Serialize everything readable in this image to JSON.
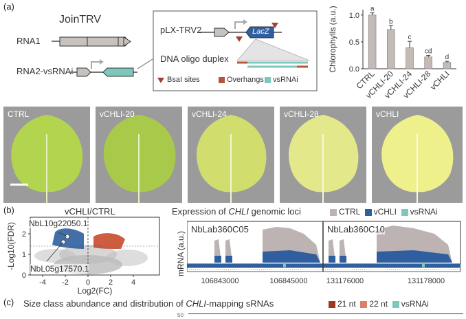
{
  "panel_a": {
    "label": "(a)",
    "join_title": "JoinTRV",
    "rna1": "RNA1",
    "rna2": "RNA2-vsRNAi",
    "vector": "pLX-TRV2",
    "lacz": "LacZ",
    "oligo": "DNA oligo duplex",
    "legend": [
      {
        "label": "BsaI sites",
        "color": "#a0403a"
      },
      {
        "label": "Overhangs",
        "color": "#b3563a"
      },
      {
        "label": "vsRNAi",
        "color": "#7ec8bb"
      }
    ],
    "leaf_labels": [
      "CTRL",
      "vCHLI-20",
      "vCHLI-24",
      "vCHLI-28",
      "vCHLI"
    ]
  },
  "panel_b": {
    "label": "(b)",
    "volcano_title": "vCHLI/CTRL",
    "gene1": "NbL10g22050.1",
    "gene2": "NbL05g17570.1",
    "volcano_ylabel": "-Log10(FDR)",
    "volcano_xlabel": "Log2(FC)",
    "volcano_xticks": [
      "-4",
      "-2",
      "0",
      "2",
      "4"
    ],
    "volcano_yticks": [
      "0",
      "1",
      "2"
    ],
    "expr_title_pre": "Expression of ",
    "expr_title_gene": "CHLI",
    "expr_title_post": " genomic loci",
    "expr_legend": [
      {
        "label": "CTRL",
        "color": "#bdb3b3"
      },
      {
        "label": "vCHLI",
        "color": "#2f5f9e"
      },
      {
        "label": "vsRNAi",
        "color": "#7ec8bb"
      }
    ],
    "locus1": "NbLab360C05",
    "locus2": "NbLab360C10",
    "mrna_label": "mRNA (a.u.)",
    "coords": [
      "106843000",
      "106845000",
      "131176000",
      "131178000"
    ]
  },
  "panel_c": {
    "label": "(c)",
    "title_pre": "Size class abundance and distribution of ",
    "title_gene": "CHLI",
    "title_post": "-mapping sRNAs",
    "legend": [
      {
        "label": "21 nt",
        "color": "#a3361f"
      },
      {
        "label": "22 nt",
        "color": "#d9826a"
      },
      {
        "label": "vsRNAi",
        "color": "#7ec8bb"
      }
    ],
    "partial_tick": "50"
  },
  "chart_data": {
    "type": "bar",
    "categories": [
      "CTRL",
      "vCHLI-20",
      "vCHLI-24",
      "vCHLI-28",
      "vCHLI"
    ],
    "values": [
      1.0,
      0.73,
      0.39,
      0.22,
      0.12
    ],
    "errors": [
      0.04,
      0.07,
      0.12,
      0.03,
      0.02
    ],
    "letters": [
      "a",
      "b",
      "c",
      "cd",
      "d"
    ],
    "ylabel": "Chlorophylls (a.u.)",
    "yticks": [
      "0.0",
      "0.5",
      "1.0"
    ],
    "ylim": [
      0,
      1.1
    ],
    "bar_color": "#c4bbb7"
  }
}
